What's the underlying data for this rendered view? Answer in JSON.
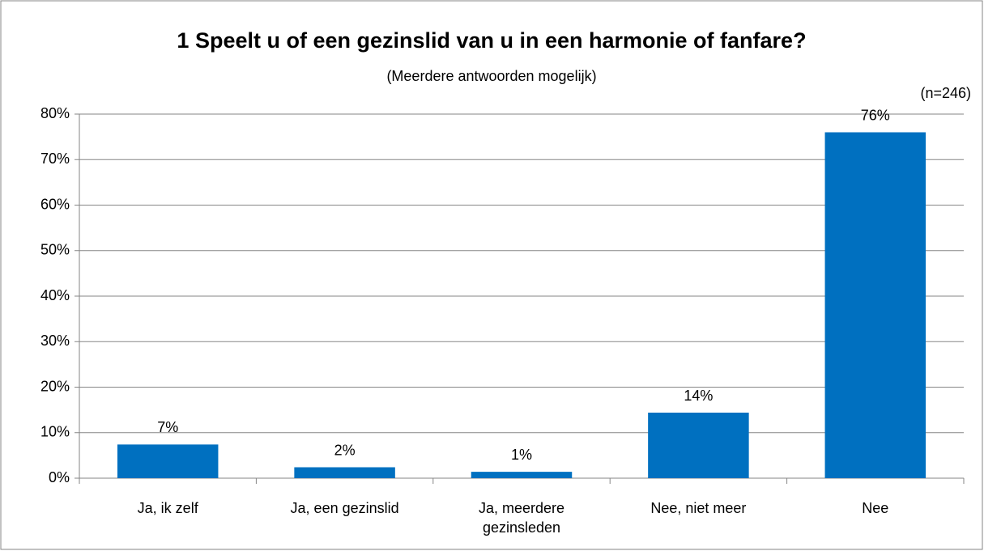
{
  "chart_data": {
    "type": "bar",
    "title": "1 Speelt u of een gezinslid van u in een harmonie of fanfare?",
    "subtitle": "(Meerdere antwoorden mogelijk)",
    "annotation": "(n=246)",
    "categories": [
      "Ja, ik zelf",
      "Ja, een gezinslid",
      "Ja, meerdere gezinsleden",
      "Nee, niet meer",
      "Nee"
    ],
    "values": [
      7.4,
      2.4,
      1.4,
      14.4,
      76.0
    ],
    "value_labels": [
      "7%",
      "2%",
      "1%",
      "14%",
      "76%"
    ],
    "color": "#0070c0",
    "ylim": [
      0,
      80
    ],
    "yticks": [
      {
        "value": 0,
        "label": "0%"
      },
      {
        "value": 10,
        "label": "10%"
      },
      {
        "value": 20,
        "label": "20%"
      },
      {
        "value": 30,
        "label": "30%"
      },
      {
        "value": 40,
        "label": "40%"
      },
      {
        "value": 50,
        "label": "50%"
      },
      {
        "value": 60,
        "label": "60%"
      },
      {
        "value": 70,
        "label": "70%"
      },
      {
        "value": 80,
        "label": "80%"
      }
    ],
    "grid": true
  }
}
